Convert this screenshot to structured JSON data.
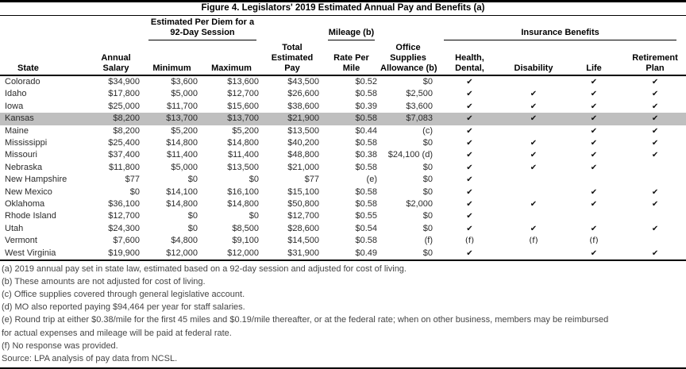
{
  "title": "Figure 4. Legislators' 2019 Estimated Annual Pay and Benefits (a)",
  "accent_colors": {
    "highlight_row": "#bfbfbf",
    "rule": "#000000"
  },
  "table": {
    "group_headers": {
      "per_diem": [
        "Estimated Per Diem for a",
        "92-Day Session"
      ],
      "mileage": "Mileage (b)",
      "insurance": "Insurance Benefits"
    },
    "columns": {
      "state": "State",
      "annual_salary": [
        "Annual",
        "Salary"
      ],
      "minimum": "Minimum",
      "maximum": "Maximum",
      "total_pay": [
        "Total",
        "Estimated",
        "Pay"
      ],
      "rate_per_mile": [
        "Rate Per",
        "Mile"
      ],
      "office_supplies": [
        "Office",
        "Supplies",
        "Allowance (b)"
      ],
      "health": [
        "Health,",
        "Dental,"
      ],
      "disability": "Disability",
      "life": "Life",
      "retirement": [
        "Retirement",
        "Plan"
      ]
    },
    "check_glyph": "✔",
    "rows": [
      {
        "state": "Colorado",
        "annual_salary": "$34,900",
        "minimum": "$3,600",
        "maximum": "$13,600",
        "total_pay": "$43,500",
        "rate": "$0.52",
        "office": "$0",
        "health": "✔",
        "disability": "",
        "life": "✔",
        "retirement": "✔",
        "highlight": false
      },
      {
        "state": "Idaho",
        "annual_salary": "$17,800",
        "minimum": "$5,000",
        "maximum": "$12,700",
        "total_pay": "$26,600",
        "rate": "$0.58",
        "office": "$2,500",
        "health": "✔",
        "disability": "✔",
        "life": "✔",
        "retirement": "✔",
        "highlight": false
      },
      {
        "state": "Iowa",
        "annual_salary": "$25,000",
        "minimum": "$11,700",
        "maximum": "$15,600",
        "total_pay": "$38,600",
        "rate": "$0.39",
        "office": "$3,600",
        "health": "✔",
        "disability": "✔",
        "life": "✔",
        "retirement": "✔",
        "highlight": false
      },
      {
        "state": "Kansas",
        "annual_salary": "$8,200",
        "minimum": "$13,700",
        "maximum": "$13,700",
        "total_pay": "$21,900",
        "rate": "$0.58",
        "office": "$7,083",
        "health": "✔",
        "disability": "✔",
        "life": "✔",
        "retirement": "✔",
        "highlight": true
      },
      {
        "state": "Maine",
        "annual_salary": "$8,200",
        "minimum": "$5,200",
        "maximum": "$5,200",
        "total_pay": "$13,500",
        "rate": "$0.44",
        "office": "(c)",
        "health": "✔",
        "disability": "",
        "life": "✔",
        "retirement": "✔",
        "highlight": false
      },
      {
        "state": "Mississippi",
        "annual_salary": "$25,400",
        "minimum": "$14,800",
        "maximum": "$14,800",
        "total_pay": "$40,200",
        "rate": "$0.58",
        "office": "$0",
        "health": "✔",
        "disability": "✔",
        "life": "✔",
        "retirement": "✔",
        "highlight": false
      },
      {
        "state": "Missouri",
        "annual_salary": "$37,400",
        "minimum": "$11,400",
        "maximum": "$11,400",
        "total_pay": "$48,800",
        "rate": "$0.38",
        "office": "$24,100 (d)",
        "health": "✔",
        "disability": "✔",
        "life": "✔",
        "retirement": "✔",
        "highlight": false
      },
      {
        "state": "Nebraska",
        "annual_salary": "$11,800",
        "minimum": "$5,000",
        "maximum": "$13,500",
        "total_pay": "$21,000",
        "rate": "$0.58",
        "office": "$0",
        "health": "✔",
        "disability": "✔",
        "life": "✔",
        "retirement": "",
        "highlight": false
      },
      {
        "state": "New Hampshire",
        "annual_salary": "$77",
        "minimum": "$0",
        "maximum": "$0",
        "total_pay": "$77",
        "rate": "(e)",
        "office": "$0",
        "health": "✔",
        "disability": "",
        "life": "",
        "retirement": "",
        "highlight": false
      },
      {
        "state": "New Mexico",
        "annual_salary": "$0",
        "minimum": "$14,100",
        "maximum": "$16,100",
        "total_pay": "$15,100",
        "rate": "$0.58",
        "office": "$0",
        "health": "✔",
        "disability": "",
        "life": "✔",
        "retirement": "✔",
        "highlight": false
      },
      {
        "state": "Oklahoma",
        "annual_salary": "$36,100",
        "minimum": "$14,800",
        "maximum": "$14,800",
        "total_pay": "$50,800",
        "rate": "$0.58",
        "office": "$2,000",
        "health": "✔",
        "disability": "✔",
        "life": "✔",
        "retirement": "✔",
        "highlight": false
      },
      {
        "state": "Rhode Island",
        "annual_salary": "$12,700",
        "minimum": "$0",
        "maximum": "$0",
        "total_pay": "$12,700",
        "rate": "$0.55",
        "office": "$0",
        "health": "✔",
        "disability": "",
        "life": "",
        "retirement": "",
        "highlight": false
      },
      {
        "state": "Utah",
        "annual_salary": "$24,300",
        "minimum": "$0",
        "maximum": "$8,500",
        "total_pay": "$28,600",
        "rate": "$0.54",
        "office": "$0",
        "health": "✔",
        "disability": "✔",
        "life": "✔",
        "retirement": "✔",
        "highlight": false
      },
      {
        "state": "Vermont",
        "annual_salary": "$7,600",
        "minimum": "$4,800",
        "maximum": "$9,100",
        "total_pay": "$14,500",
        "rate": "$0.58",
        "office": "(f)",
        "health": "(f)",
        "disability": "(f)",
        "life": "(f)",
        "retirement": "",
        "highlight": false
      },
      {
        "state": "West Virginia",
        "annual_salary": "$19,900",
        "minimum": "$12,000",
        "maximum": "$12,000",
        "total_pay": "$31,900",
        "rate": "$0.49",
        "office": "$0",
        "health": "✔",
        "disability": "",
        "life": "✔",
        "retirement": "✔",
        "highlight": false
      }
    ]
  },
  "footnotes": [
    "(a) 2019 annual pay set in state law, estimated based on a 92-day session and adjusted for cost of living.",
    "(b) These amounts are not adjusted for cost of living.",
    "(c) Office supplies covered through general legislative account.",
    "(d) MO also reported paying $94,464 per year for staff salaries.",
    "(e) Round trip at either $0.38/mile for the first 45 miles and $0.19/mile thereafter, or at the federal rate; when on other business, members may be reimbursed",
    "for actual expenses and mileage will be paid at federal rate.",
    "(f) No response was provided.",
    "Source: LPA analysis of pay data from NCSL."
  ]
}
